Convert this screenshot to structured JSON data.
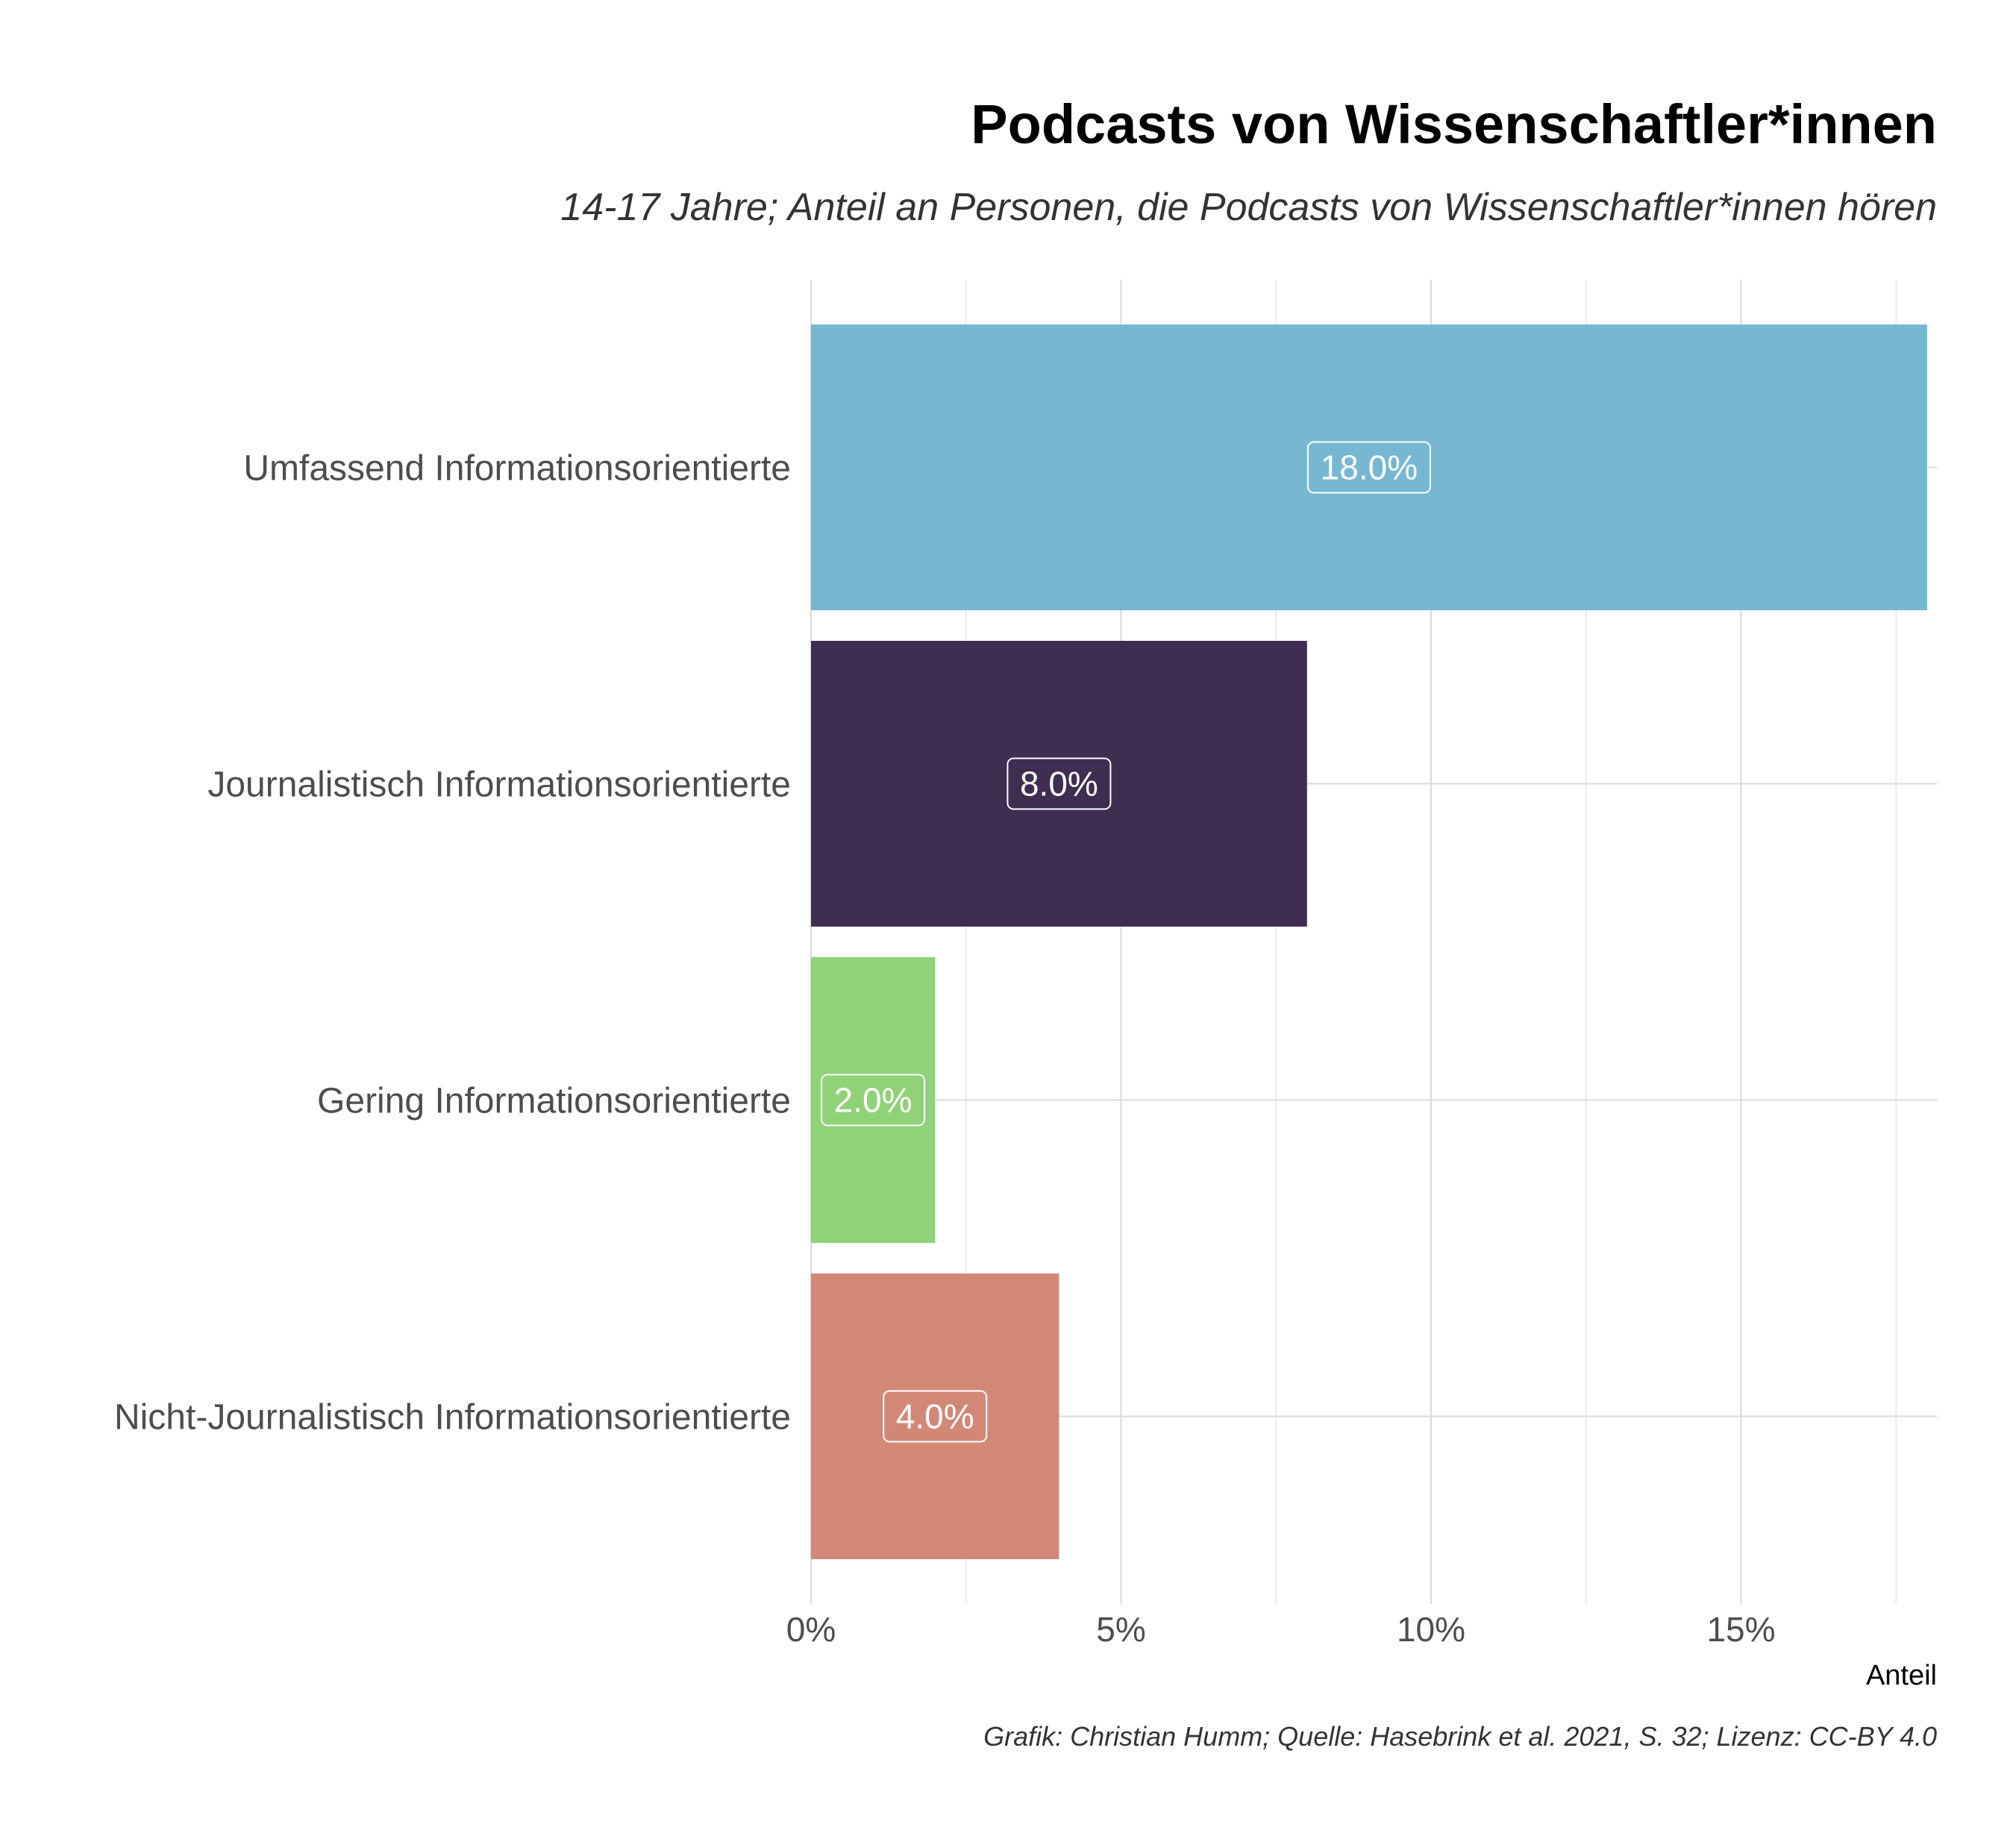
{
  "chart_data": {
    "type": "bar",
    "orientation": "horizontal",
    "title": "Podcasts von Wissenschaftler*innen",
    "subtitle": "14-17 Jahre; Anteil an Personen, die Podcasts von Wissenschaftler*innen hören",
    "xlabel": "Anteil",
    "ylabel": "",
    "caption": "Grafik: Christian Humm; Quelle: Hasebrink et al. 2021, S. 32; Lizenz: CC-BY 4.0",
    "categories": [
      "Umfassend Informationsorientierte",
      "Journalistisch Informationsorientierte",
      "Gering Informationsorientierte",
      "Nicht-Journalistisch Informationsorientierte"
    ],
    "values": [
      18.0,
      8.0,
      2.0,
      4.0
    ],
    "data_labels": [
      "18.0%",
      "8.0%",
      "2.0%",
      "4.0%"
    ],
    "colors": [
      "#76b7d2",
      "#3f2d52",
      "#90d277",
      "#d38877"
    ],
    "xlim": [
      0,
      18.2
    ],
    "xticks": [
      0,
      5,
      10,
      15
    ],
    "xtick_labels": [
      "0%",
      "5%",
      "10%",
      "15%"
    ],
    "grid": true,
    "legend": "none"
  }
}
